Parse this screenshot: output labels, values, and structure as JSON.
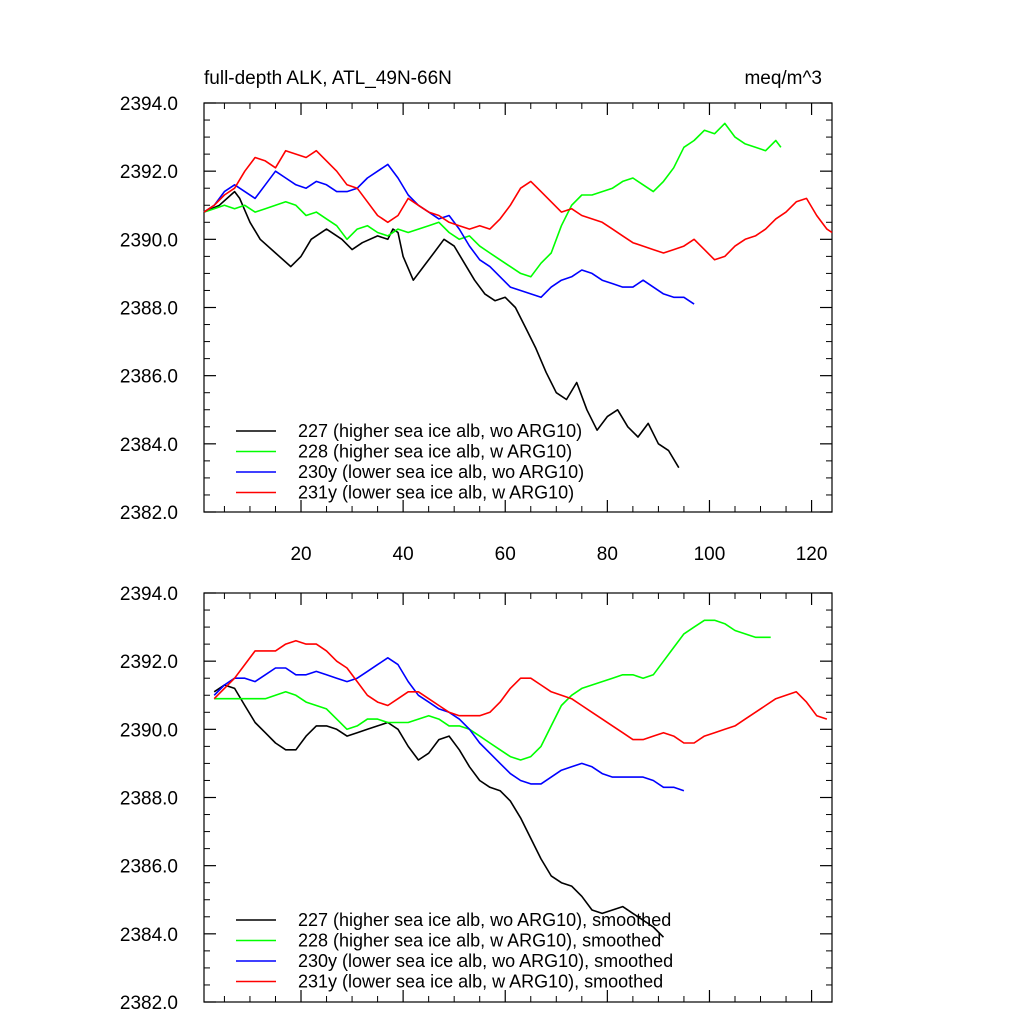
{
  "colors": {
    "227": "#000000",
    "228": "#00ff00",
    "230y": "#0000ff",
    "231y": "#ff0000",
    "frame": "#000000",
    "background": "#ffffff"
  },
  "chart_data": [
    {
      "type": "line",
      "title": "full-depth ALK, ATL_49N-66N",
      "units": "meq/m^3",
      "xlabel": "",
      "ylabel": "",
      "xlim": [
        1,
        124
      ],
      "ylim": [
        2382,
        2394
      ],
      "x_ticks": [
        20,
        40,
        60,
        80,
        100,
        120
      ],
      "x_tick_labels": [
        "20",
        "40",
        "60",
        "80",
        "100",
        "120"
      ],
      "y_ticks": [
        2382,
        2384,
        2386,
        2388,
        2390,
        2392,
        2394
      ],
      "y_tick_labels": [
        "2382.0",
        "2384.0",
        "2386.0",
        "2388.0",
        "2390.0",
        "2392.0",
        "2394.0"
      ],
      "legend_position": "bottom-left",
      "series": [
        {
          "id": "227",
          "name": "227 (higher sea ice alb, wo ARG10)",
          "x": [
            1,
            4,
            7,
            8,
            10,
            12,
            15,
            18,
            20,
            22,
            25,
            28,
            30,
            32,
            35,
            37,
            38,
            39,
            40,
            42,
            44,
            46,
            48,
            50,
            52,
            54,
            56,
            58,
            60,
            62,
            64,
            66,
            68,
            70,
            72,
            74,
            76,
            78,
            80,
            82,
            84,
            86,
            88,
            90,
            92,
            94
          ],
          "values": [
            2390.8,
            2391.0,
            2391.4,
            2391.2,
            2390.5,
            2390.0,
            2389.6,
            2389.2,
            2389.5,
            2390.0,
            2390.3,
            2390.0,
            2389.7,
            2389.9,
            2390.1,
            2390.0,
            2390.3,
            2390.2,
            2389.5,
            2388.8,
            2389.2,
            2389.6,
            2390.0,
            2389.8,
            2389.3,
            2388.8,
            2388.4,
            2388.2,
            2388.3,
            2388.0,
            2387.4,
            2386.8,
            2386.1,
            2385.5,
            2385.3,
            2385.8,
            2385.0,
            2384.4,
            2384.8,
            2385.0,
            2384.5,
            2384.2,
            2384.6,
            2384.0,
            2383.8,
            2383.3
          ]
        },
        {
          "id": "228",
          "name": "228 (higher sea ice alb, w ARG10)",
          "x": [
            1,
            3,
            5,
            7,
            9,
            11,
            13,
            15,
            17,
            19,
            21,
            23,
            25,
            27,
            29,
            31,
            33,
            35,
            37,
            39,
            41,
            43,
            45,
            47,
            49,
            51,
            53,
            55,
            57,
            59,
            61,
            63,
            65,
            67,
            69,
            71,
            73,
            75,
            77,
            79,
            81,
            83,
            85,
            87,
            89,
            91,
            93,
            95,
            97,
            99,
            101,
            103,
            105,
            107,
            109,
            111,
            113,
            114
          ],
          "values": [
            2390.8,
            2390.9,
            2391.0,
            2390.9,
            2391.0,
            2390.8,
            2390.9,
            2391.0,
            2391.1,
            2391.0,
            2390.7,
            2390.8,
            2390.6,
            2390.4,
            2390.0,
            2390.3,
            2390.4,
            2390.2,
            2390.1,
            2390.3,
            2390.2,
            2390.3,
            2390.4,
            2390.5,
            2390.2,
            2390.0,
            2390.1,
            2389.8,
            2389.6,
            2389.4,
            2389.2,
            2389.0,
            2388.9,
            2389.3,
            2389.6,
            2390.4,
            2391.0,
            2391.3,
            2391.3,
            2391.4,
            2391.5,
            2391.7,
            2391.8,
            2391.6,
            2391.4,
            2391.7,
            2392.1,
            2392.7,
            2392.9,
            2393.2,
            2393.1,
            2393.4,
            2393.0,
            2392.8,
            2392.7,
            2392.6,
            2392.9,
            2392.7
          ]
        },
        {
          "id": "230y",
          "name": "230y (lower sea ice alb, wo ARG10)",
          "x": [
            1,
            3,
            5,
            7,
            9,
            11,
            13,
            15,
            17,
            19,
            21,
            23,
            25,
            27,
            29,
            31,
            33,
            35,
            37,
            39,
            41,
            43,
            45,
            47,
            49,
            51,
            53,
            55,
            57,
            59,
            61,
            63,
            65,
            67,
            69,
            71,
            73,
            75,
            77,
            79,
            81,
            83,
            85,
            87,
            89,
            91,
            93,
            95,
            97
          ],
          "values": [
            2390.8,
            2391.0,
            2391.4,
            2391.6,
            2391.4,
            2391.2,
            2391.6,
            2392.0,
            2391.8,
            2391.6,
            2391.5,
            2391.7,
            2391.6,
            2391.4,
            2391.4,
            2391.5,
            2391.8,
            2392.0,
            2392.2,
            2391.8,
            2391.3,
            2391.0,
            2390.8,
            2390.6,
            2390.7,
            2390.3,
            2389.8,
            2389.4,
            2389.2,
            2388.9,
            2388.6,
            2388.5,
            2388.4,
            2388.3,
            2388.6,
            2388.8,
            2388.9,
            2389.1,
            2389.0,
            2388.8,
            2388.7,
            2388.6,
            2388.6,
            2388.8,
            2388.6,
            2388.4,
            2388.3,
            2388.3,
            2388.1
          ]
        },
        {
          "id": "231y",
          "name": "231y (lower sea ice alb, w ARG10)",
          "x": [
            1,
            3,
            5,
            7,
            9,
            11,
            13,
            15,
            17,
            19,
            21,
            23,
            25,
            27,
            29,
            31,
            33,
            35,
            37,
            39,
            41,
            43,
            45,
            47,
            49,
            51,
            53,
            55,
            57,
            59,
            61,
            63,
            65,
            67,
            69,
            71,
            73,
            75,
            77,
            79,
            81,
            83,
            85,
            87,
            89,
            91,
            93,
            95,
            97,
            99,
            101,
            103,
            105,
            107,
            109,
            111,
            113,
            115,
            117,
            119,
            121,
            123,
            124
          ],
          "values": [
            2390.8,
            2391.0,
            2391.3,
            2391.5,
            2392.0,
            2392.4,
            2392.3,
            2392.1,
            2392.6,
            2392.5,
            2392.4,
            2392.6,
            2392.3,
            2392.0,
            2391.6,
            2391.5,
            2391.1,
            2390.7,
            2390.5,
            2390.7,
            2391.2,
            2391.0,
            2390.8,
            2390.7,
            2390.5,
            2390.4,
            2390.3,
            2390.4,
            2390.3,
            2390.6,
            2391.0,
            2391.5,
            2391.7,
            2391.4,
            2391.1,
            2390.8,
            2390.9,
            2390.7,
            2390.6,
            2390.5,
            2390.3,
            2390.1,
            2389.9,
            2389.8,
            2389.7,
            2389.6,
            2389.7,
            2389.8,
            2390.0,
            2389.7,
            2389.4,
            2389.5,
            2389.8,
            2390.0,
            2390.1,
            2390.3,
            2390.6,
            2390.8,
            2391.1,
            2391.2,
            2390.7,
            2390.3,
            2390.2
          ]
        }
      ]
    },
    {
      "type": "line",
      "title": "",
      "units": "",
      "xlabel": "",
      "ylabel": "",
      "xlim": [
        1,
        124
      ],
      "ylim": [
        2382,
        2394
      ],
      "x_ticks": [
        20,
        40,
        60,
        80,
        100,
        120
      ],
      "x_tick_labels": [],
      "y_ticks": [
        2382,
        2384,
        2386,
        2388,
        2390,
        2392,
        2394
      ],
      "y_tick_labels": [
        "2382.0",
        "2384.0",
        "2386.0",
        "2388.0",
        "2390.0",
        "2392.0",
        "2394.0"
      ],
      "legend_position": "bottom-left",
      "series": [
        {
          "id": "227",
          "name": "227 (higher sea ice alb, wo ARG10), smoothed",
          "x": [
            3,
            5,
            7,
            9,
            11,
            13,
            15,
            17,
            19,
            21,
            23,
            25,
            27,
            29,
            31,
            33,
            35,
            37,
            39,
            41,
            43,
            45,
            47,
            49,
            51,
            53,
            55,
            57,
            59,
            61,
            63,
            65,
            67,
            69,
            71,
            73,
            75,
            77,
            79,
            81,
            83,
            85,
            87,
            89,
            91
          ],
          "values": [
            2391.1,
            2391.3,
            2391.2,
            2390.7,
            2390.2,
            2389.9,
            2389.6,
            2389.4,
            2389.4,
            2389.8,
            2390.1,
            2390.1,
            2390.0,
            2389.8,
            2389.9,
            2390.0,
            2390.1,
            2390.2,
            2390.0,
            2389.5,
            2389.1,
            2389.3,
            2389.7,
            2389.8,
            2389.4,
            2388.9,
            2388.5,
            2388.3,
            2388.2,
            2387.9,
            2387.4,
            2386.8,
            2386.2,
            2385.7,
            2385.5,
            2385.4,
            2385.1,
            2384.7,
            2384.6,
            2384.7,
            2384.8,
            2384.6,
            2384.4,
            2384.2,
            2383.9
          ]
        },
        {
          "id": "228",
          "name": "228 (higher sea ice alb, w ARG10), smoothed",
          "x": [
            3,
            5,
            7,
            9,
            11,
            13,
            15,
            17,
            19,
            21,
            23,
            25,
            27,
            29,
            31,
            33,
            35,
            37,
            39,
            41,
            43,
            45,
            47,
            49,
            51,
            53,
            55,
            57,
            59,
            61,
            63,
            65,
            67,
            69,
            71,
            73,
            75,
            77,
            79,
            81,
            83,
            85,
            87,
            89,
            91,
            93,
            95,
            97,
            99,
            101,
            103,
            105,
            107,
            109,
            111,
            112
          ],
          "values": [
            2390.9,
            2390.9,
            2390.9,
            2390.9,
            2390.9,
            2390.9,
            2391.0,
            2391.1,
            2391.0,
            2390.8,
            2390.7,
            2390.6,
            2390.3,
            2390.0,
            2390.1,
            2390.3,
            2390.3,
            2390.2,
            2390.2,
            2390.2,
            2390.3,
            2390.4,
            2390.3,
            2390.1,
            2390.1,
            2390.0,
            2389.8,
            2389.6,
            2389.4,
            2389.2,
            2389.1,
            2389.2,
            2389.5,
            2390.1,
            2390.7,
            2391.0,
            2391.2,
            2391.3,
            2391.4,
            2391.5,
            2391.6,
            2391.6,
            2391.5,
            2391.6,
            2392.0,
            2392.4,
            2392.8,
            2393.0,
            2393.2,
            2393.2,
            2393.1,
            2392.9,
            2392.8,
            2392.7,
            2392.7,
            2392.7
          ]
        },
        {
          "id": "230y",
          "name": "230y (lower sea ice alb, wo ARG10), smoothed",
          "x": [
            3,
            5,
            7,
            9,
            11,
            13,
            15,
            17,
            19,
            21,
            23,
            25,
            27,
            29,
            31,
            33,
            35,
            37,
            39,
            41,
            43,
            45,
            47,
            49,
            51,
            53,
            55,
            57,
            59,
            61,
            63,
            65,
            67,
            69,
            71,
            73,
            75,
            77,
            79,
            81,
            83,
            85,
            87,
            89,
            91,
            93,
            95
          ],
          "values": [
            2391.0,
            2391.3,
            2391.5,
            2391.5,
            2391.4,
            2391.6,
            2391.8,
            2391.8,
            2391.6,
            2391.6,
            2391.7,
            2391.6,
            2391.5,
            2391.4,
            2391.5,
            2391.7,
            2391.9,
            2392.1,
            2391.9,
            2391.4,
            2391.0,
            2390.8,
            2390.6,
            2390.5,
            2390.3,
            2390.0,
            2389.6,
            2389.3,
            2389.0,
            2388.7,
            2388.5,
            2388.4,
            2388.4,
            2388.6,
            2388.8,
            2388.9,
            2389.0,
            2388.9,
            2388.7,
            2388.6,
            2388.6,
            2388.6,
            2388.6,
            2388.5,
            2388.3,
            2388.3,
            2388.2
          ]
        },
        {
          "id": "231y",
          "name": "231y (lower sea ice alb, w ARG10), smoothed",
          "x": [
            3,
            5,
            7,
            9,
            11,
            13,
            15,
            17,
            19,
            21,
            23,
            25,
            27,
            29,
            31,
            33,
            35,
            37,
            39,
            41,
            43,
            45,
            47,
            49,
            51,
            53,
            55,
            57,
            59,
            61,
            63,
            65,
            67,
            69,
            71,
            73,
            75,
            77,
            79,
            81,
            83,
            85,
            87,
            89,
            91,
            93,
            95,
            97,
            99,
            101,
            103,
            105,
            107,
            109,
            111,
            113,
            115,
            117,
            119,
            121,
            123
          ],
          "values": [
            2390.9,
            2391.2,
            2391.5,
            2391.9,
            2392.3,
            2392.3,
            2392.3,
            2392.5,
            2392.6,
            2392.5,
            2392.5,
            2392.3,
            2392.0,
            2391.8,
            2391.4,
            2391.0,
            2390.8,
            2390.7,
            2390.9,
            2391.1,
            2391.1,
            2390.9,
            2390.7,
            2390.5,
            2390.4,
            2390.4,
            2390.4,
            2390.5,
            2390.8,
            2391.2,
            2391.5,
            2391.5,
            2391.3,
            2391.1,
            2391.0,
            2390.9,
            2390.7,
            2390.5,
            2390.3,
            2390.1,
            2389.9,
            2389.7,
            2389.7,
            2389.8,
            2389.9,
            2389.8,
            2389.6,
            2389.6,
            2389.8,
            2389.9,
            2390.0,
            2390.1,
            2390.3,
            2390.5,
            2390.7,
            2390.9,
            2391.0,
            2391.1,
            2390.8,
            2390.4,
            2390.3
          ]
        }
      ]
    }
  ]
}
